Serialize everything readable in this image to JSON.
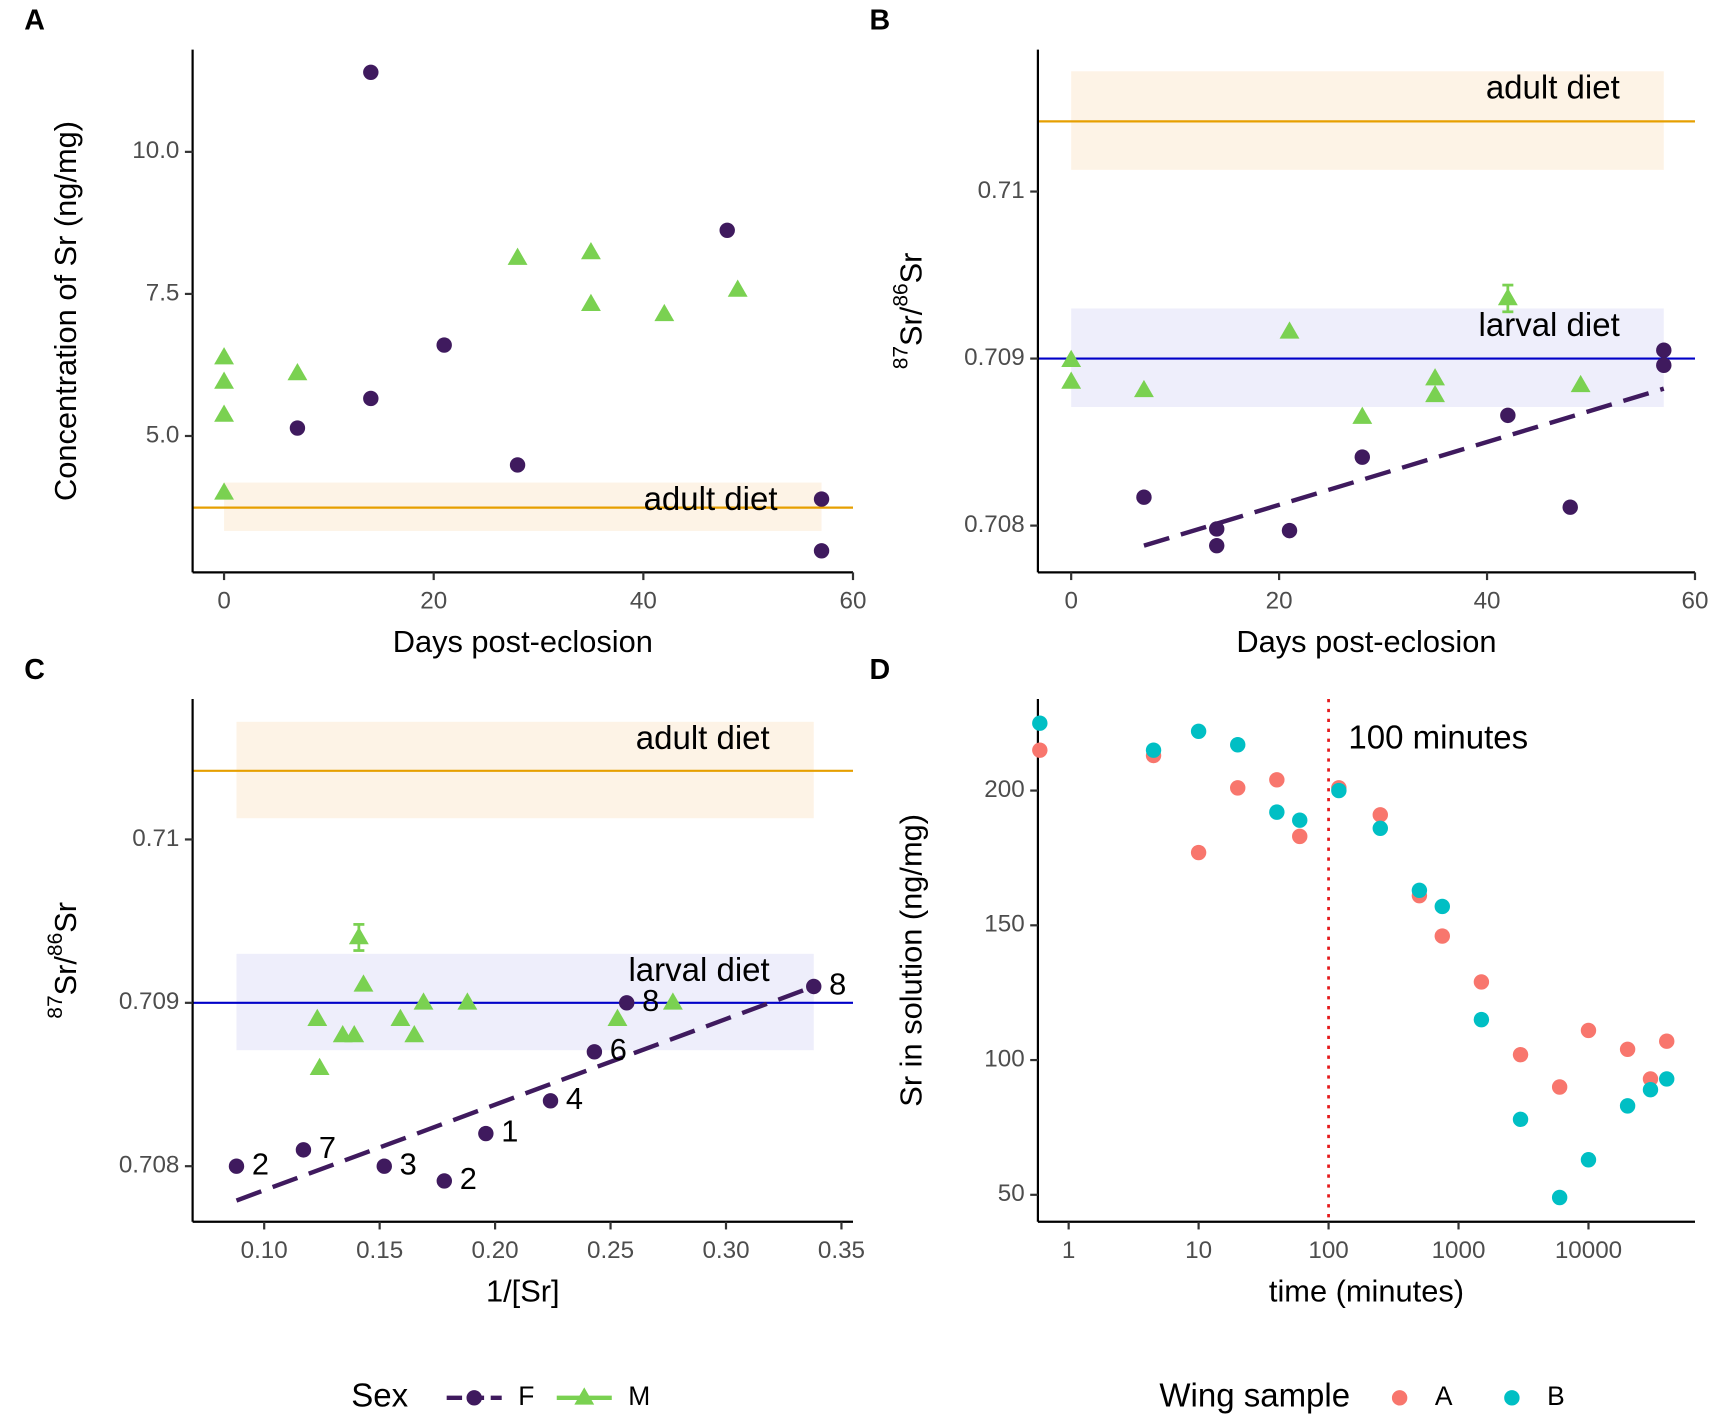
{
  "chart_data": [
    {
      "type": "scatter",
      "panel": "A",
      "xlabel": "Days post-eclosion",
      "ylabel_parts": [
        {
          "text": "Concentration of Sr (ng/mg)",
          "sup": false
        }
      ],
      "xlim": [
        -3,
        60
      ],
      "xticks": [
        0,
        20,
        40,
        60
      ],
      "ylim": [
        2.6,
        11.8
      ],
      "yticks": [
        {
          "value": 5.0,
          "label": "5.0"
        },
        {
          "value": 7.5,
          "label": "7.5"
        },
        {
          "value": 10.0,
          "label": "10.0"
        }
      ],
      "legend_title": "Sex",
      "series": [
        {
          "name": "F",
          "color": "#3f1a5e",
          "marker": "circle",
          "x": [
            14,
            7,
            14,
            21,
            28,
            48,
            57,
            57
          ],
          "values": [
            11.4,
            5.14,
            5.66,
            6.6,
            4.49,
            8.62,
            3.89,
            2.98
          ]
        },
        {
          "name": "M",
          "color": "#7ad151",
          "marker": "triangle",
          "x": [
            0,
            0,
            0,
            0,
            7,
            28,
            35,
            35,
            42,
            49
          ],
          "values": [
            6.38,
            5.95,
            5.37,
            4.0,
            6.1,
            8.13,
            8.23,
            7.32,
            7.14,
            7.57
          ]
        }
      ],
      "references": [
        {
          "label": "adult diet",
          "value": 3.74,
          "band": [
            3.33,
            4.18
          ],
          "xrange": [
            0,
            57
          ],
          "color": "#e69f00",
          "fill": "#fdf3e6"
        }
      ]
    },
    {
      "type": "scatter",
      "panel": "B",
      "xlabel": "Days post-eclosion",
      "ylabel_parts": [
        {
          "text": "87",
          "sup": true
        },
        {
          "text": "Sr/",
          "sup": false
        },
        {
          "text": "86",
          "sup": true
        },
        {
          "text": "Sr",
          "sup": false
        }
      ],
      "xlim": [
        -3.2,
        60
      ],
      "xticks": [
        0,
        20,
        40,
        60
      ],
      "ylim": [
        0.70772,
        0.71085
      ],
      "yticks": [
        0.708,
        0.709,
        0.71
      ],
      "series": [
        {
          "color": "#3f1a5e",
          "marker": "circle",
          "x": [
            7,
            14,
            14,
            21,
            28,
            42,
            48,
            57,
            57
          ],
          "values": [
            0.70817,
            0.70798,
            0.70788,
            0.70797,
            0.70841,
            0.70866,
            0.70811,
            0.70905,
            0.70896
          ]
        },
        {
          "color": "#7ad151",
          "marker": "triangle",
          "x": [
            0,
            0,
            7,
            21,
            28,
            35,
            35,
            42,
            49
          ],
          "values": [
            0.70899,
            0.70886,
            0.70881,
            0.70916,
            0.70865,
            0.70888,
            0.70878,
            0.70936,
            0.70884
          ],
          "errors": [
            null,
            null,
            null,
            null,
            null,
            null,
            null,
            8e-05,
            null
          ]
        }
      ],
      "trend": {
        "color": "#3f1a5e",
        "x": [
          7,
          57
        ],
        "values": [
          0.70788,
          0.70882
        ]
      },
      "references": [
        {
          "label": "adult diet",
          "value": 0.71042,
          "band": [
            0.71013,
            0.71072
          ],
          "xrange": [
            0,
            57
          ],
          "color": "#e69f00",
          "fill": "#fdf3e6"
        },
        {
          "label": "larval diet",
          "value": 0.709,
          "band": [
            0.70871,
            0.7093
          ],
          "xrange": [
            0,
            57
          ],
          "color": "#0000c8",
          "fill": "#eeeefb"
        }
      ]
    },
    {
      "type": "scatter",
      "panel": "C",
      "xlabel": "1/[Sr]",
      "ylabel_parts": [
        {
          "text": "87",
          "sup": true
        },
        {
          "text": "Sr/",
          "sup": false
        },
        {
          "text": "86",
          "sup": true
        },
        {
          "text": "Sr",
          "sup": false
        }
      ],
      "xlim": [
        0.069,
        0.355
      ],
      "xticks": [
        {
          "value": 0.1,
          "label": "0.10"
        },
        0.15,
        {
          "value": 0.2,
          "label": "0.20"
        },
        0.25,
        {
          "value": 0.3,
          "label": "0.30"
        },
        0.35
      ],
      "ylim": [
        0.70766,
        0.71086
      ],
      "yticks": [
        0.708,
        0.709,
        0.71
      ],
      "series": [
        {
          "color": "#3f1a5e",
          "marker": "circle",
          "x": [
            0.088,
            0.117,
            0.152,
            0.178,
            0.196,
            0.224,
            0.243,
            0.257,
            0.338
          ],
          "values": [
            0.708,
            0.7081,
            0.708,
            0.70791,
            0.7082,
            0.7084,
            0.7087,
            0.709,
            0.7091
          ],
          "point_labels": [
            "2",
            "7",
            "3",
            "2",
            "1",
            "4",
            "6",
            "8",
            "8"
          ]
        },
        {
          "color": "#7ad151",
          "marker": "triangle",
          "x": [
            0.123,
            0.124,
            0.134,
            0.139,
            0.141,
            0.143,
            0.159,
            0.165,
            0.169,
            0.188,
            0.253,
            0.277
          ],
          "values": [
            0.7089,
            0.7086,
            0.7088,
            0.7088,
            0.7094,
            0.70911,
            0.7089,
            0.7088,
            0.709,
            0.709,
            0.7089,
            0.709
          ],
          "errors": [
            null,
            null,
            null,
            null,
            8e-05,
            null,
            null,
            null,
            null,
            null,
            null,
            null
          ]
        }
      ],
      "trend": {
        "color": "#3f1a5e",
        "x": [
          0.088,
          0.338
        ],
        "values": [
          0.70779,
          0.7091
        ]
      },
      "references": [
        {
          "label": "adult diet",
          "value": 0.71042,
          "band": [
            0.71013,
            0.71072
          ],
          "xrange": [
            0.088,
            0.338
          ],
          "color": "#e69f00",
          "fill": "#fdf3e6"
        },
        {
          "label": "larval diet",
          "value": 0.709,
          "band": [
            0.70871,
            0.7093
          ],
          "xrange": [
            0.088,
            0.338
          ],
          "color": "#0000c8",
          "fill": "#eeeefb"
        }
      ]
    },
    {
      "type": "scatter",
      "panel": "D",
      "xlabel": "time (minutes)",
      "ylabel_parts": [
        {
          "text": "Sr in solution (ng/mg)",
          "sup": false
        }
      ],
      "xlog": true,
      "xlim": [
        0.58,
        66000
      ],
      "xticks": [
        1,
        10,
        100,
        1000,
        10000
      ],
      "ylim": [
        40,
        234
      ],
      "yticks": [
        50,
        100,
        150,
        200
      ],
      "legend_title": "Wing sample",
      "series": [
        {
          "name": "A",
          "color": "#f8766d",
          "marker": "circle",
          "x": [
            0.6,
            4.5,
            10,
            20,
            40,
            60,
            120,
            250,
            500,
            750,
            1500,
            3000,
            6000,
            10000,
            20000,
            30000,
            40000
          ],
          "values": [
            215,
            213,
            177,
            201,
            204,
            183,
            201,
            191,
            161,
            146,
            129,
            102,
            90,
            111,
            104,
            93,
            107
          ]
        },
        {
          "name": "B",
          "color": "#00bfc4",
          "marker": "circle",
          "x": [
            0.6,
            4.5,
            10,
            20,
            40,
            60,
            120,
            250,
            500,
            750,
            1500,
            3000,
            6000,
            10000,
            20000,
            30000,
            40000
          ],
          "values": [
            225,
            215,
            222,
            217,
            192,
            189,
            200,
            186,
            163,
            157,
            115,
            78,
            49,
            63,
            83,
            89,
            93
          ]
        }
      ],
      "vline": {
        "value": 100,
        "label": "100 minutes",
        "color": "#e41a1c"
      }
    }
  ]
}
